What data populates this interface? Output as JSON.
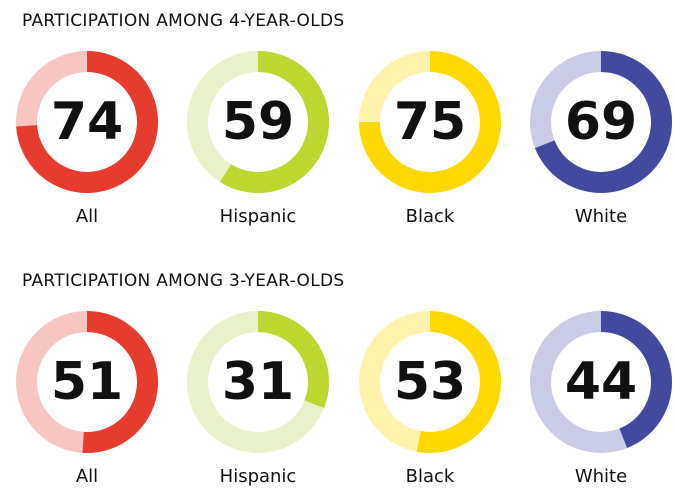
{
  "chart_data": [
    {
      "type": "donut",
      "title": "PARTICIPATION AMONG 4-YEAR-OLDS",
      "categories": [
        "All",
        "Hispanic",
        "Black",
        "White"
      ],
      "values": [
        74,
        59,
        75,
        69
      ],
      "colors": [
        "#e63c2f",
        "#bdd630",
        "#ffd800",
        "#434a9e"
      ],
      "track_colors": [
        "#f7c6c2",
        "#e9f1cb",
        "#fff2ad",
        "#cacbe5"
      ],
      "ylim": [
        0,
        100
      ]
    },
    {
      "type": "donut",
      "title": "PARTICIPATION AMONG 3-YEAR-OLDS",
      "categories": [
        "All",
        "Hispanic",
        "Black",
        "White"
      ],
      "values": [
        51,
        31,
        53,
        44
      ],
      "colors": [
        "#e63c2f",
        "#bdd630",
        "#ffd800",
        "#434a9e"
      ],
      "track_colors": [
        "#f7c6c2",
        "#e9f1cb",
        "#fff2ad",
        "#cacbe5"
      ],
      "ylim": [
        0,
        100
      ]
    }
  ]
}
